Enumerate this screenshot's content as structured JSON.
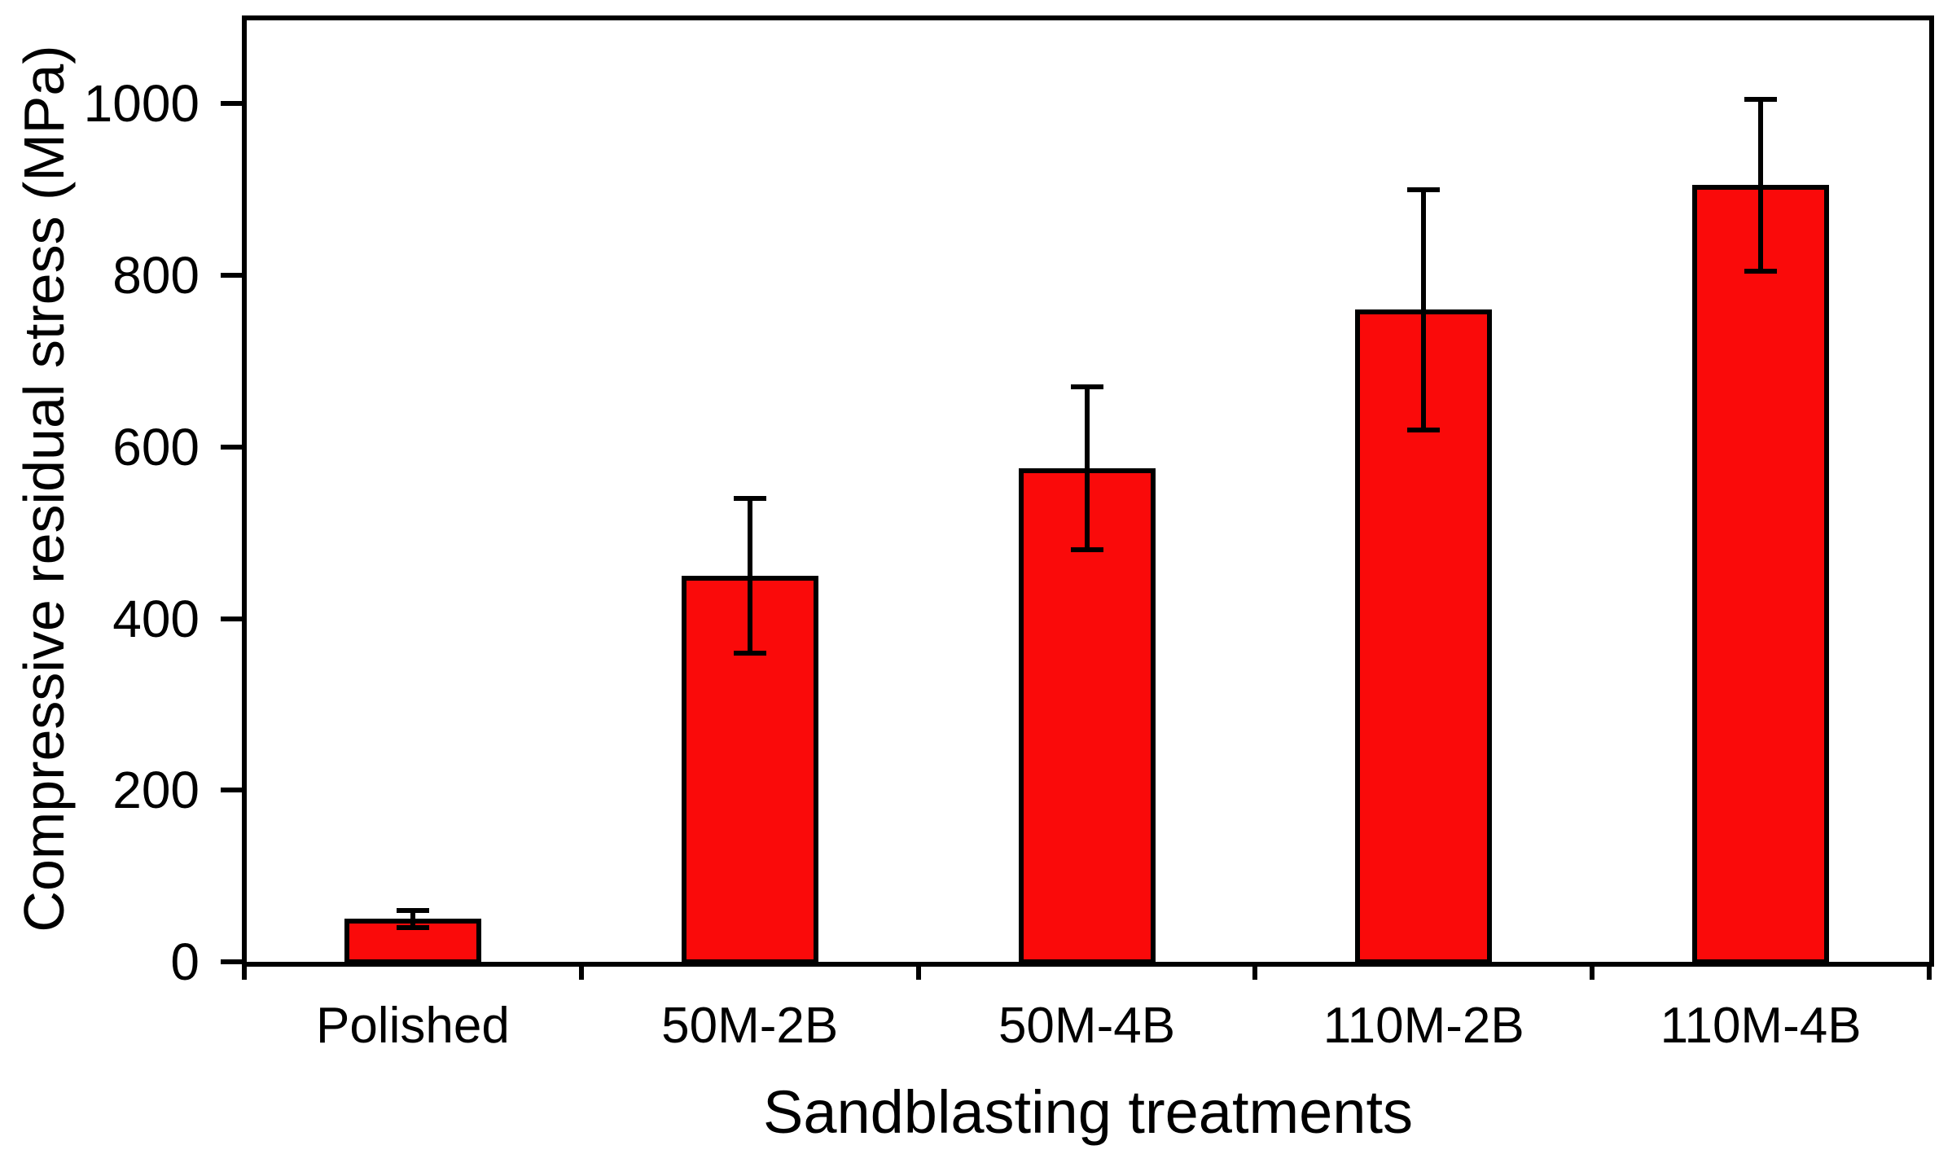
{
  "figure": {
    "background_color": "#ffffff",
    "text_color": "#000000"
  },
  "chart_data": {
    "type": "bar",
    "title": "",
    "xlabel": "Sandblasting treatments",
    "ylabel": "Compressive residual stress (MPa)",
    "categories": [
      "Polished",
      "50M-2B",
      "50M-4B",
      "110M-2B",
      "110M-4B"
    ],
    "values": [
      50,
      450,
      575,
      760,
      905
    ],
    "error_bars": [
      10,
      90,
      95,
      140,
      100
    ],
    "y_ticks": [
      0,
      200,
      400,
      600,
      800,
      1000
    ],
    "ylim": [
      0,
      1100
    ],
    "bar_color": "#fa0a0a",
    "bar_border_color": "#000000",
    "error_bar_color": "#000000",
    "axis_color": "#000000",
    "grid": false,
    "legend": false
  }
}
